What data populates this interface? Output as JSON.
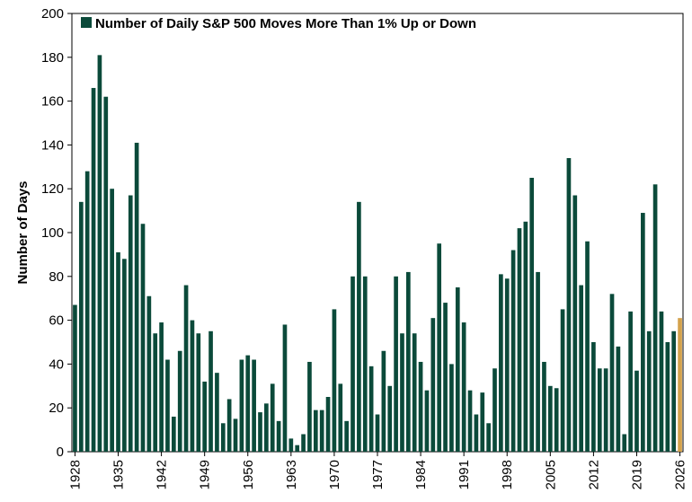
{
  "chart_data": {
    "type": "bar",
    "title": "",
    "xlabel": "",
    "ylabel": "Number of Days",
    "ylim": [
      0,
      200
    ],
    "yticks": [
      0,
      20,
      40,
      60,
      80,
      100,
      120,
      140,
      160,
      180,
      200
    ],
    "xticks": [
      "1928",
      "1935",
      "1942",
      "1949",
      "1956",
      "1963",
      "1970",
      "1977",
      "1984",
      "1991",
      "1998",
      "2005",
      "2012",
      "2019",
      "2026"
    ],
    "grid": false,
    "legend_position": "top-left",
    "categories": [
      1928,
      1929,
      1930,
      1931,
      1932,
      1933,
      1934,
      1935,
      1936,
      1937,
      1938,
      1939,
      1940,
      1941,
      1942,
      1943,
      1944,
      1945,
      1946,
      1947,
      1948,
      1949,
      1950,
      1951,
      1952,
      1953,
      1954,
      1955,
      1956,
      1957,
      1958,
      1959,
      1960,
      1961,
      1962,
      1963,
      1964,
      1965,
      1966,
      1967,
      1968,
      1969,
      1970,
      1971,
      1972,
      1973,
      1974,
      1975,
      1976,
      1977,
      1978,
      1979,
      1980,
      1981,
      1982,
      1983,
      1984,
      1985,
      1986,
      1987,
      1988,
      1989,
      1990,
      1991,
      1992,
      1993,
      1994,
      1995,
      1996,
      1997,
      1998,
      1999,
      2000,
      2001,
      2002,
      2003,
      2004,
      2005,
      2006,
      2007,
      2008,
      2009,
      2010,
      2011,
      2012,
      2013,
      2014,
      2015,
      2016,
      2017,
      2018,
      2019,
      2020,
      2021,
      2022,
      2023,
      2024,
      2025,
      2026
    ],
    "series": [
      {
        "name": "Number of Daily S&P 500 Moves More Than 1% Up or Down",
        "color": "#0b4a3a",
        "highlight_color": "#d4a24c",
        "highlight_category": 2026,
        "values": [
          67,
          114,
          128,
          166,
          181,
          162,
          120,
          91,
          88,
          117,
          141,
          104,
          71,
          54,
          59,
          42,
          16,
          46,
          76,
          60,
          54,
          32,
          55,
          36,
          13,
          24,
          15,
          42,
          44,
          42,
          18,
          22,
          31,
          14,
          58,
          6,
          3,
          8,
          41,
          19,
          19,
          25,
          65,
          31,
          14,
          80,
          114,
          80,
          39,
          17,
          46,
          30,
          80,
          54,
          82,
          54,
          41,
          28,
          61,
          95,
          68,
          40,
          75,
          59,
          28,
          17,
          27,
          13,
          38,
          81,
          79,
          92,
          102,
          105,
          125,
          82,
          41,
          30,
          29,
          65,
          134,
          117,
          76,
          96,
          50,
          38,
          38,
          72,
          48,
          8,
          64,
          37,
          109,
          55,
          122,
          64,
          50,
          55,
          61
        ]
      }
    ]
  },
  "colors": {
    "bar": "#0b4a3a",
    "highlight": "#d4a24c",
    "axis": "#000000"
  }
}
